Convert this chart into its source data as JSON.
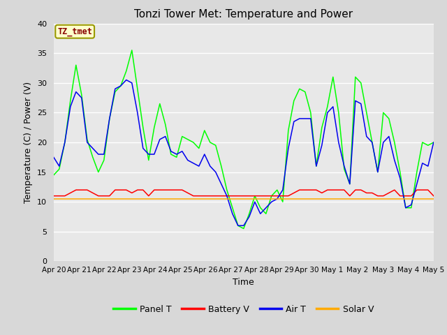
{
  "title": "Tonzi Tower Met: Temperature and Power",
  "xlabel": "Time",
  "ylabel": "Temperature (C) / Power (V)",
  "ylim": [
    0,
    40
  ],
  "yticks": [
    0,
    5,
    10,
    15,
    20,
    25,
    30,
    35,
    40
  ],
  "x_labels": [
    "Apr 20",
    "Apr 21",
    "Apr 22",
    "Apr 23",
    "Apr 24",
    "Apr 25",
    "Apr 26",
    "Apr 27",
    "Apr 28",
    "Apr 29",
    "Apr 30",
    "May 1",
    "May 2",
    "May 3",
    "May 4",
    "May 5"
  ],
  "annotation": "TZ_tmet",
  "bg_color": "#e8e8e8",
  "outer_bg": "#d8d8d8",
  "grid_color": "#ffffff",
  "colors": {
    "Panel T": "#00ff00",
    "Battery V": "#ff0000",
    "Air T": "#0000ee",
    "Solar V": "#ffaa00"
  },
  "panel_t": [
    14.5,
    15.5,
    20,
    27,
    33,
    28,
    20.5,
    17.5,
    15,
    17,
    24,
    28.5,
    29.5,
    32,
    35.5,
    29,
    22.5,
    17,
    22.5,
    26.5,
    23,
    18,
    17.5,
    21,
    20.5,
    20,
    19,
    22,
    20,
    19.5,
    16,
    12,
    9,
    6,
    5.5,
    8,
    11,
    9,
    8,
    11,
    12,
    10,
    22,
    27,
    29,
    28.5,
    25,
    16,
    22.5,
    26,
    31,
    25,
    15.5,
    13,
    31,
    30,
    25,
    20,
    15,
    25,
    24,
    20,
    15,
    9,
    9,
    15,
    20,
    19.5,
    20
  ],
  "air_t": [
    17.5,
    16,
    20,
    26,
    28.5,
    27.5,
    20,
    19,
    18,
    18,
    24,
    29,
    29.5,
    30.5,
    30,
    25,
    19,
    18,
    18,
    20.5,
    21,
    18.5,
    18,
    18.5,
    17,
    16.5,
    16,
    18,
    16,
    15,
    13,
    11,
    8,
    6,
    6,
    7.5,
    10,
    8,
    9,
    10,
    10.5,
    12,
    19,
    23.5,
    24,
    24,
    24,
    16,
    19.5,
    25,
    26,
    20,
    16,
    13,
    27,
    26.5,
    21,
    20,
    15,
    20,
    21,
    17,
    14,
    9,
    9.5,
    13,
    16.5,
    16,
    20
  ],
  "battery_v": [
    11,
    11,
    11,
    11.5,
    12,
    12,
    12,
    11.5,
    11,
    11,
    11,
    12,
    12,
    12,
    11.5,
    12,
    12,
    11,
    12,
    12,
    12,
    12,
    12,
    12,
    11.5,
    11,
    11,
    11,
    11,
    11,
    11,
    11,
    11,
    11,
    11,
    11,
    11,
    11,
    11,
    11,
    11,
    11,
    11,
    11.5,
    12,
    12,
    12,
    12,
    11.5,
    12,
    12,
    12,
    12,
    11,
    12,
    12,
    11.5,
    11.5,
    11,
    11,
    11.5,
    12,
    11,
    11,
    11,
    12,
    12,
    12,
    11
  ],
  "solar_v": [
    10.5,
    10.5,
    10.5,
    10.5,
    10.5,
    10.5,
    10.5,
    10.5,
    10.5,
    10.5,
    10.5,
    10.5,
    10.5,
    10.5,
    10.5,
    10.5,
    10.5,
    10.5,
    10.5,
    10.5,
    10.5,
    10.5,
    10.5,
    10.5,
    10.5,
    10.5,
    10.5,
    10.5,
    10.5,
    10.5,
    10.5,
    10.5,
    10.5,
    10.5,
    10.5,
    10.5,
    10.5,
    10.5,
    10.5,
    10.5,
    10.5,
    10.5,
    10.5,
    10.5,
    10.5,
    10.5,
    10.5,
    10.5,
    10.5,
    10.5,
    10.5,
    10.5,
    10.5,
    10.5,
    10.5,
    10.5,
    10.5,
    10.5,
    10.5,
    10.5,
    10.5,
    10.5,
    10.5,
    10.5,
    10.5,
    10.5,
    10.5,
    10.5,
    10.5
  ]
}
